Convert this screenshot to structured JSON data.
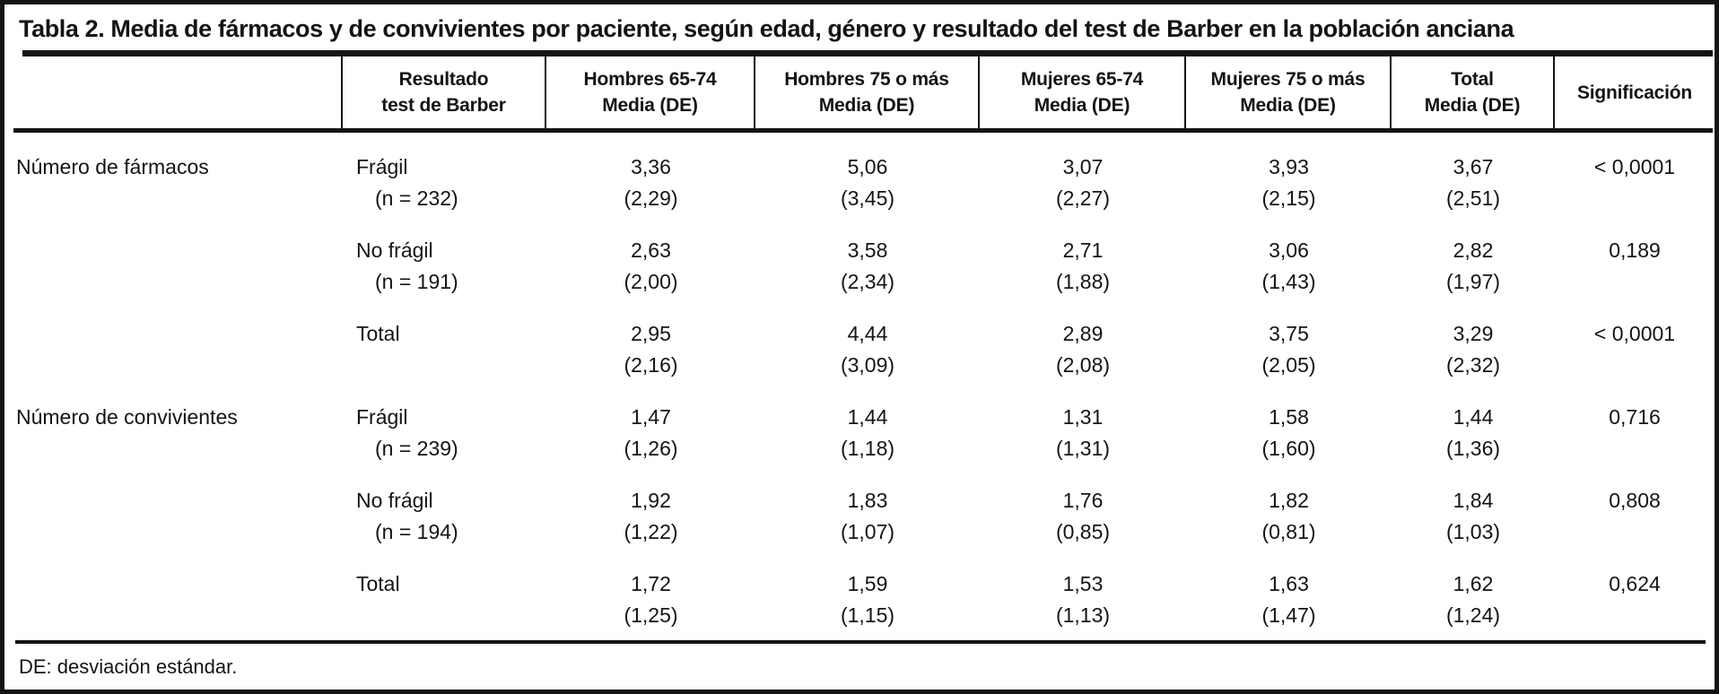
{
  "table": {
    "title": "Tabla 2. Media de fármacos y de convivientes por paciente, según edad, género y resultado del test de Barber en la población anciana",
    "footnote": "DE: desviación estándar.",
    "columns": [
      {
        "line1": "Resultado",
        "line2": "test de Barber"
      },
      {
        "line1": "Hombres 65-74",
        "line2": "Media (DE)"
      },
      {
        "line1": "Hombres 75 o más",
        "line2": "Media (DE)"
      },
      {
        "line1": "Mujeres 65-74",
        "line2": "Media (DE)"
      },
      {
        "line1": "Mujeres 75 o más",
        "line2": "Media (DE)"
      },
      {
        "line1": "Total",
        "line2": "Media (DE)"
      },
      {
        "line1": "Significación",
        "line2": ""
      }
    ],
    "rows": [
      {
        "group": "Número de fármacos",
        "barber": "Frágil",
        "n": "(n = 232)",
        "values": [
          "3,36",
          "5,06",
          "3,07",
          "3,93",
          "3,67"
        ],
        "sd": [
          "(2,29)",
          "(3,45)",
          "(2,27)",
          "(2,15)",
          "(2,51)"
        ],
        "sig": "< 0,0001"
      },
      {
        "group": "",
        "barber": "No frágil",
        "n": "(n = 191)",
        "values": [
          "2,63",
          "3,58",
          "2,71",
          "3,06",
          "2,82"
        ],
        "sd": [
          "(2,00)",
          "(2,34)",
          "(1,88)",
          "(1,43)",
          "(1,97)"
        ],
        "sig": "0,189"
      },
      {
        "group": "",
        "barber": "Total",
        "n": "",
        "values": [
          "2,95",
          "4,44",
          "2,89",
          "3,75",
          "3,29"
        ],
        "sd": [
          "(2,16)",
          "(3,09)",
          "(2,08)",
          "(2,05)",
          "(2,32)"
        ],
        "sig": "< 0,0001"
      },
      {
        "group": "Número de convivientes",
        "barber": "Frágil",
        "n": "(n = 239)",
        "values": [
          "1,47",
          "1,44",
          "1,31",
          "1,58",
          "1,44"
        ],
        "sd": [
          "(1,26)",
          "(1,18)",
          "(1,31)",
          "(1,60)",
          "(1,36)"
        ],
        "sig": "0,716"
      },
      {
        "group": "",
        "barber": "No frágil",
        "n": "(n = 194)",
        "values": [
          "1,92",
          "1,83",
          "1,76",
          "1,82",
          "1,84"
        ],
        "sd": [
          "(1,22)",
          "(1,07)",
          "(0,85)",
          "(0,81)",
          "(1,03)"
        ],
        "sig": "0,808"
      },
      {
        "group": "",
        "barber": "Total",
        "n": "",
        "values": [
          "1,72",
          "1,59",
          "1,53",
          "1,63",
          "1,62"
        ],
        "sd": [
          "(1,25)",
          "(1,15)",
          "(1,13)",
          "(1,47)",
          "(1,24)"
        ],
        "sig": "0,624"
      }
    ]
  }
}
